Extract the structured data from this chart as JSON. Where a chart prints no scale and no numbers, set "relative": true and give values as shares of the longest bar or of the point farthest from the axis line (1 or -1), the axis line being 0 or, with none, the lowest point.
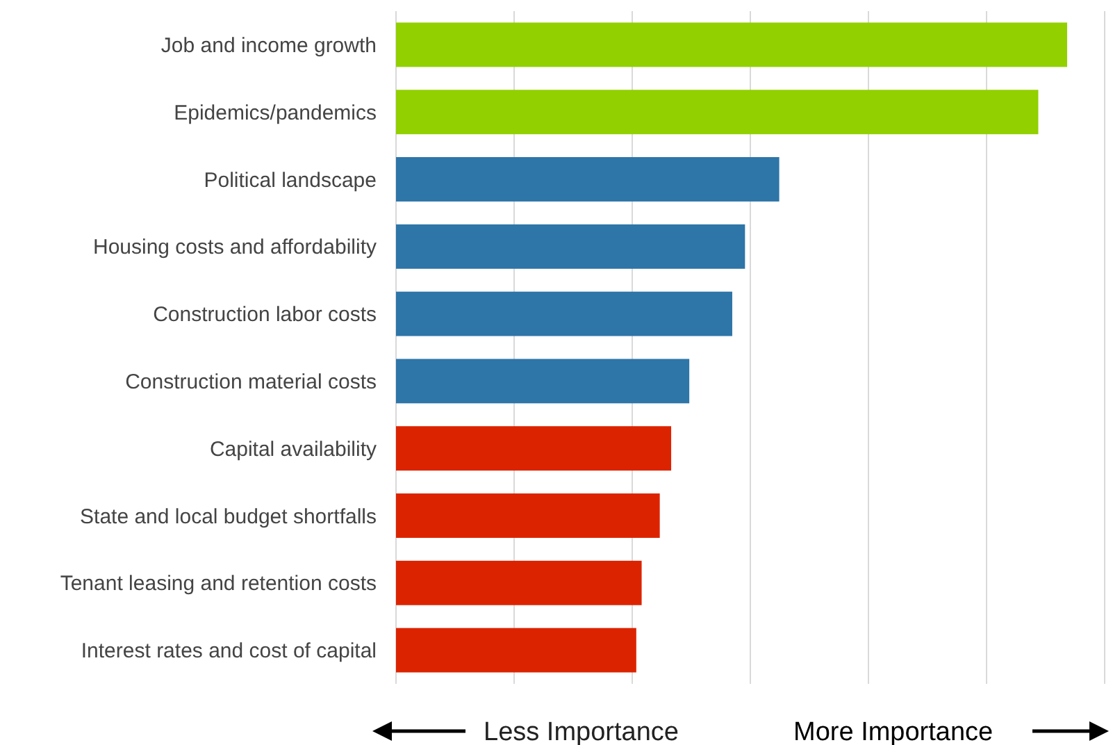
{
  "chart_data": {
    "type": "bar",
    "orientation": "horizontal",
    "relative": true,
    "grid": "x",
    "categories": [
      "Job and income growth",
      "Epidemics/pandemics",
      "Political landscape",
      "Housing costs and affordability",
      "Construction labor costs",
      "Construction material costs",
      "Capital availability",
      "State and local budget shortfalls",
      "Tenant leasing and retention costs",
      "Interest rates and cost of capital"
    ],
    "values": [
      1,
      0.957,
      0.571,
      0.52,
      0.501,
      0.437,
      0.41,
      0.393,
      0.366,
      0.358
    ],
    "colors": [
      "#92d000",
      "#92d000",
      "#2e75a8",
      "#2e75a8",
      "#2e75a8",
      "#2e75a8",
      "#dc2300",
      "#dc2300",
      "#dc2300",
      "#dc2300"
    ],
    "annotations": [
      "Less Importance",
      "More Importance"
    ]
  }
}
